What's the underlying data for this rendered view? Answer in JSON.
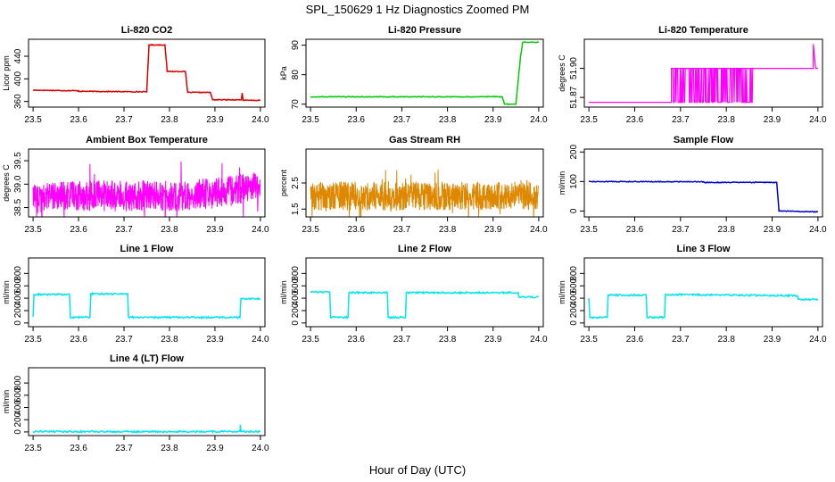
{
  "figure": {
    "title": "SPL_150629  1 Hz Diagnostics Zoomed PM",
    "xlabel": "Hour of Day (UTC)"
  },
  "chart_data": [
    {
      "id": "co2",
      "type": "line",
      "title": "Li-820 CO2",
      "ylabel": "Licor ppm",
      "color": "#dd0000",
      "xlim": [
        23.49,
        24.01
      ],
      "ylim": [
        350,
        470
      ],
      "xticks": [
        "23.5",
        "23.6",
        "23.7",
        "23.8",
        "23.9",
        "24.0"
      ],
      "yticks": [
        "360",
        "400",
        "440"
      ],
      "series": [
        {
          "x": [
            23.5,
            23.6,
            23.6,
            23.75,
            23.755,
            23.79,
            23.795,
            23.835,
            23.84,
            23.89,
            23.895,
            23.958,
            23.96,
            23.962,
            24.0
          ],
          "y": [
            380,
            379,
            378,
            377,
            460,
            460,
            413,
            413,
            376,
            376,
            363,
            363,
            375,
            362,
            362
          ]
        }
      ]
    },
    {
      "id": "pressure",
      "type": "line",
      "title": "Li-820 Pressure",
      "ylabel": "kPa",
      "color": "#00cc00",
      "xlim": [
        23.49,
        24.01
      ],
      "ylim": [
        69,
        92
      ],
      "xticks": [
        "23.5",
        "23.6",
        "23.7",
        "23.8",
        "23.9",
        "24.0"
      ],
      "yticks": [
        "70",
        "80",
        "90"
      ],
      "series": [
        {
          "x": [
            23.5,
            23.92,
            23.925,
            23.95,
            23.96,
            23.965,
            24.0
          ],
          "y": [
            72.5,
            72.5,
            70,
            70,
            86,
            91,
            91
          ]
        }
      ]
    },
    {
      "id": "temperature",
      "type": "line",
      "title": "Li-820 Temperature",
      "ylabel": "degrees C",
      "color": "#ff00ff",
      "xlim": [
        23.49,
        24.01
      ],
      "ylim": [
        51.86,
        51.93
      ],
      "xticks": [
        "23.5",
        "23.6",
        "23.7",
        "23.8",
        "23.9",
        "24.0"
      ],
      "yticks": [
        "51.87",
        "51.90"
      ],
      "series": [
        {
          "x": [
            23.5,
            23.68,
            23.68,
            23.86,
            23.86,
            23.99,
            23.99,
            23.995,
            24.0
          ],
          "y": [
            51.865,
            51.865,
            51.9,
            51.9,
            51.9,
            51.9,
            51.925,
            51.9,
            51.9
          ]
        }
      ]
    },
    {
      "id": "ambient",
      "type": "line",
      "title": "Ambient Box Temperature",
      "ylabel": "degrees C",
      "color": "#ff00ff",
      "xlim": [
        23.49,
        24.01
      ],
      "ylim": [
        38.3,
        39.75
      ],
      "xticks": [
        "23.5",
        "23.6",
        "23.7",
        "23.8",
        "23.9",
        "24.0"
      ],
      "yticks": [
        "38.5",
        "39.0",
        "39.5"
      ],
      "series": [
        {
          "x": [
            23.5,
            23.6,
            23.7,
            23.8,
            23.9,
            24.0
          ],
          "y": [
            38.7,
            38.75,
            38.75,
            38.75,
            38.8,
            38.95
          ]
        }
      ]
    },
    {
      "id": "rh",
      "type": "line",
      "title": "Gas Stream RH",
      "ylabel": "percent",
      "color": "#dd8800",
      "xlim": [
        23.49,
        24.01
      ],
      "ylim": [
        1.2,
        3.8
      ],
      "xticks": [
        "23.5",
        "23.6",
        "23.7",
        "23.8",
        "23.9",
        "24.0"
      ],
      "yticks": [
        "1.5",
        "2.5"
      ],
      "series": [
        {
          "x": [
            23.5,
            24.0
          ],
          "y": [
            2.0,
            2.0
          ]
        }
      ]
    },
    {
      "id": "sample",
      "type": "line",
      "title": "Sample Flow",
      "ylabel": "ml/min",
      "color": "#0000cc",
      "xlim": [
        23.49,
        24.01
      ],
      "ylim": [
        -20,
        210
      ],
      "xticks": [
        "23.5",
        "23.6",
        "23.7",
        "23.8",
        "23.9",
        "24.0"
      ],
      "yticks": [
        "0",
        "100",
        "200"
      ],
      "series": [
        {
          "x": [
            23.5,
            23.75,
            23.75,
            23.91,
            23.915,
            24.0
          ],
          "y": [
            100,
            99,
            97,
            97,
            0,
            -3
          ]
        }
      ]
    },
    {
      "id": "line1",
      "type": "line",
      "title": "Line 1 Flow",
      "ylabel": "ml/min",
      "color": "#00e5ee",
      "xlim": [
        23.49,
        24.01
      ],
      "ylim": [
        -60,
        1050
      ],
      "xticks": [
        "23.5",
        "23.6",
        "23.7",
        "23.8",
        "23.9",
        "24.0"
      ],
      "yticks": [
        "0",
        "200",
        "400",
        "600",
        "800"
      ],
      "series": [
        {
          "x": [
            23.5,
            23.502,
            23.58,
            23.582,
            23.625,
            23.627,
            23.708,
            23.71,
            23.955,
            23.957,
            24.0
          ],
          "y": [
            100,
            460,
            460,
            90,
            90,
            470,
            470,
            90,
            90,
            390,
            390
          ]
        }
      ]
    },
    {
      "id": "line2",
      "type": "line",
      "title": "Line 2 Flow",
      "ylabel": "ml/min",
      "color": "#00e5ee",
      "xlim": [
        23.49,
        24.01
      ],
      "ylim": [
        -60,
        1050
      ],
      "xticks": [
        "23.5",
        "23.6",
        "23.7",
        "23.8",
        "23.9",
        "24.0"
      ],
      "yticks": [
        "0",
        "200",
        "400",
        "600",
        "800"
      ],
      "series": [
        {
          "x": [
            23.5,
            23.542,
            23.544,
            23.582,
            23.584,
            23.668,
            23.67,
            23.708,
            23.71,
            23.955,
            23.957,
            24.0
          ],
          "y": [
            500,
            500,
            90,
            90,
            490,
            490,
            90,
            90,
            490,
            490,
            420,
            420
          ]
        }
      ]
    },
    {
      "id": "line3",
      "type": "line",
      "title": "Line 3 Flow",
      "ylabel": "ml/min",
      "color": "#00e5ee",
      "xlim": [
        23.49,
        24.01
      ],
      "ylim": [
        -60,
        1050
      ],
      "xticks": [
        "23.5",
        "23.6",
        "23.7",
        "23.8",
        "23.9",
        "24.0"
      ],
      "yticks": [
        "0",
        "200",
        "400",
        "600",
        "800"
      ],
      "series": [
        {
          "x": [
            23.5,
            23.502,
            23.54,
            23.542,
            23.625,
            23.627,
            23.665,
            23.667,
            23.955,
            23.957,
            24.0
          ],
          "y": [
            400,
            90,
            90,
            450,
            450,
            90,
            90,
            460,
            440,
            380,
            380
          ]
        }
      ]
    },
    {
      "id": "line4",
      "type": "line",
      "title": "Line 4 (LT) Flow",
      "ylabel": "ml/min",
      "color": "#00e5ee",
      "xlim": [
        23.49,
        24.01
      ],
      "ylim": [
        -60,
        1050
      ],
      "xticks": [
        "23.5",
        "23.6",
        "23.7",
        "23.8",
        "23.9",
        "24.0"
      ],
      "yticks": [
        "0",
        "200",
        "400",
        "600",
        "800"
      ],
      "series": [
        {
          "x": [
            23.5,
            23.955,
            23.956,
            23.957,
            23.958,
            24.0
          ],
          "y": [
            5,
            5,
            120,
            20,
            5,
            5
          ]
        }
      ]
    }
  ]
}
